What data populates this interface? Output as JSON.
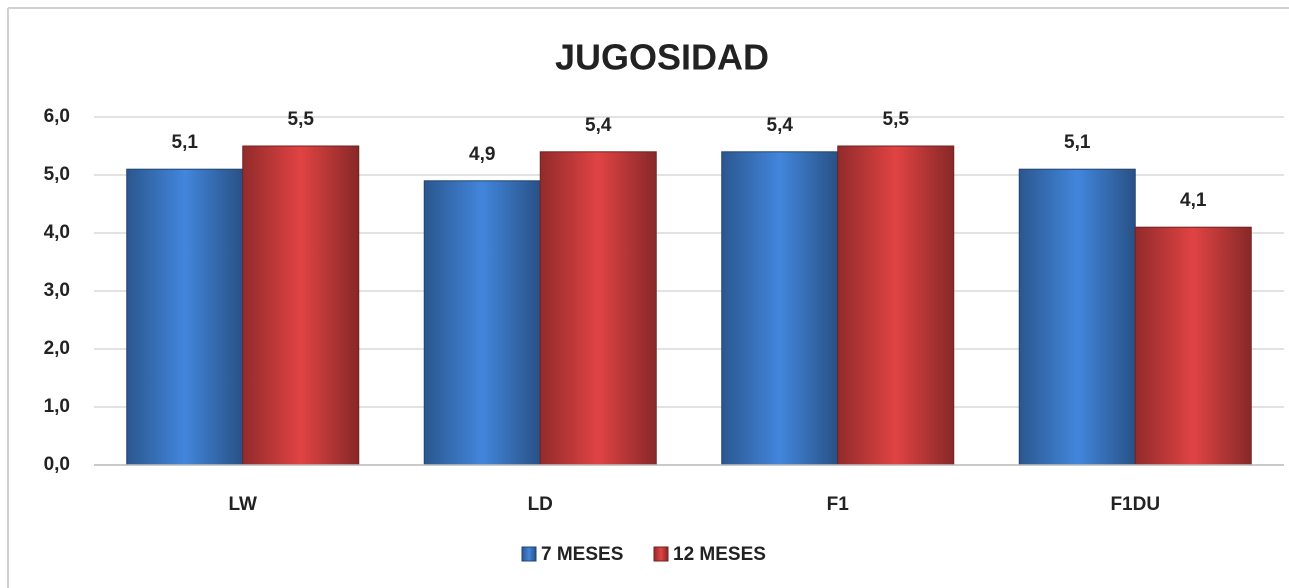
{
  "chart_data": {
    "type": "bar",
    "title": "JUGOSIDAD",
    "categories": [
      "LW",
      "LD",
      "F1",
      "F1DU"
    ],
    "series": [
      {
        "name": "7 MESES",
        "color": "#3d7ccc",
        "values": [
          5.1,
          4.9,
          5.4,
          5.1
        ],
        "value_labels": [
          "5,1",
          "4,9",
          "5,4",
          "5,1"
        ]
      },
      {
        "name": "12 MESES",
        "color": "#d03e3e",
        "values": [
          5.5,
          5.4,
          5.5,
          4.1
        ],
        "value_labels": [
          "5,5",
          "5,4",
          "5,5",
          "4,1"
        ]
      }
    ],
    "ylim": [
      0,
      6
    ],
    "yticks": [
      {
        "value": 0,
        "label": "0,0"
      },
      {
        "value": 1,
        "label": "1,0"
      },
      {
        "value": 2,
        "label": "2,0"
      },
      {
        "value": 3,
        "label": "3,0"
      },
      {
        "value": 4,
        "label": "4,0"
      },
      {
        "value": 5,
        "label": "5,0"
      },
      {
        "value": 6,
        "label": "6,0"
      }
    ],
    "grid": true,
    "legend": "bottom"
  }
}
